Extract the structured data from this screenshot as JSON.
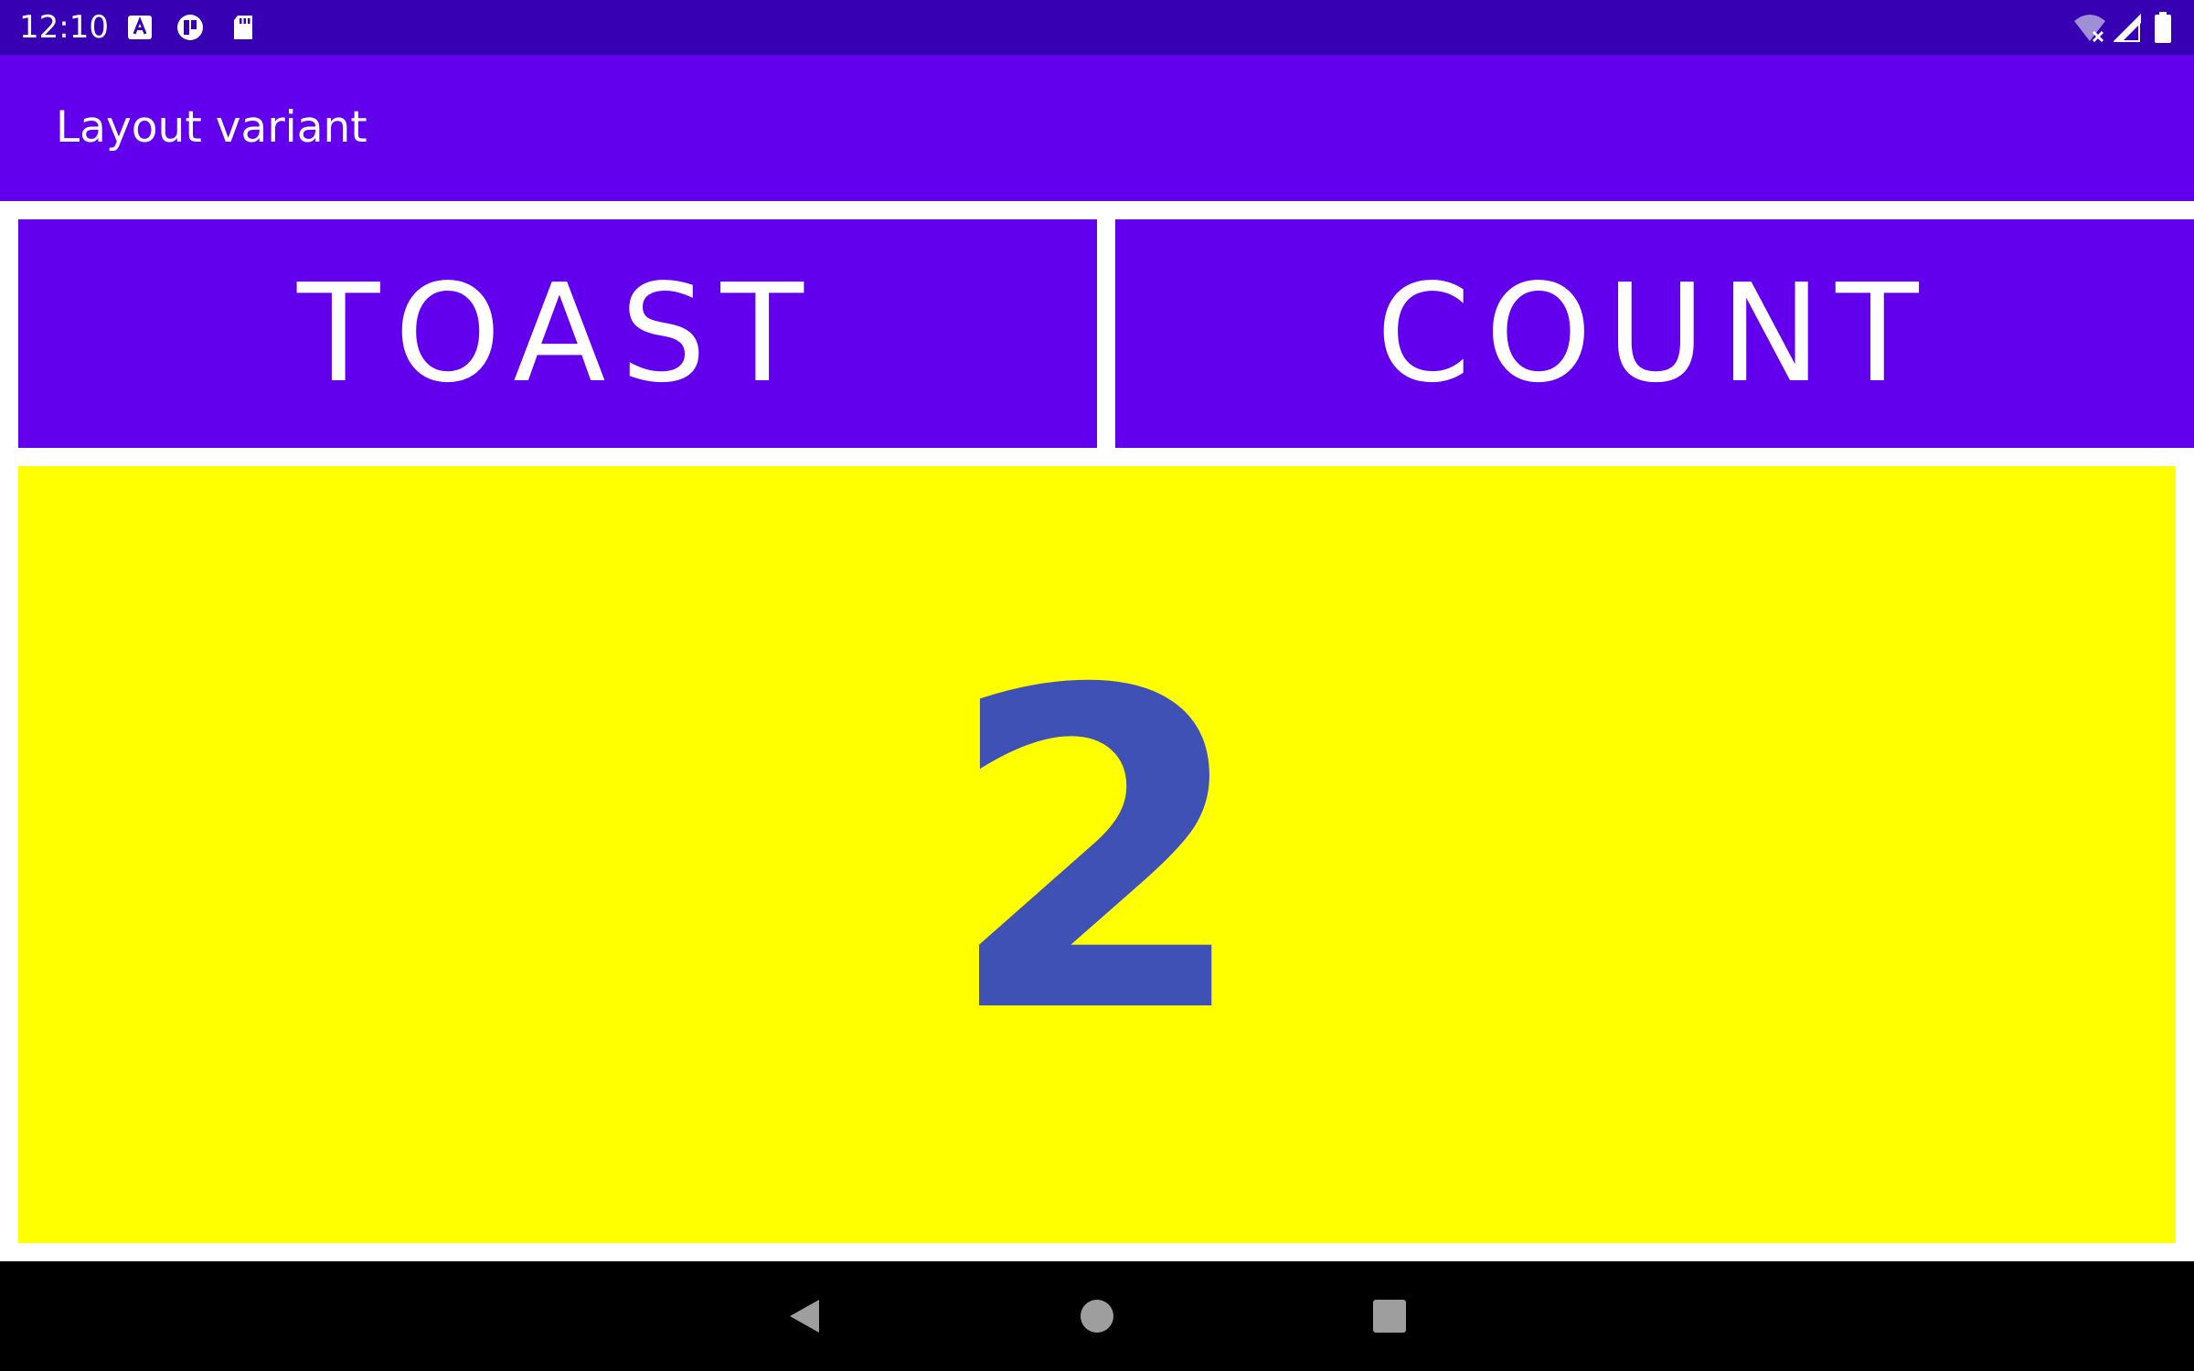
{
  "status_bar": {
    "time": "12:10",
    "left_icons": [
      "keyboard-a-icon",
      "sync-app-icon",
      "sd-card-icon"
    ],
    "right_icons": [
      "wifi-off-icon",
      "cell-signal-icon",
      "battery-icon"
    ]
  },
  "app_bar": {
    "title": "Layout variant"
  },
  "buttons": {
    "toast_label": "TOAST",
    "count_label": "COUNT"
  },
  "counter": {
    "value": "2"
  },
  "nav_bar": {
    "buttons": [
      "back-icon",
      "home-icon",
      "recents-icon"
    ]
  },
  "colors": {
    "status_bar": "#3700b3",
    "primary": "#6200ee",
    "counter_background": "#ffff00",
    "counter_text": "#3f51b5"
  }
}
